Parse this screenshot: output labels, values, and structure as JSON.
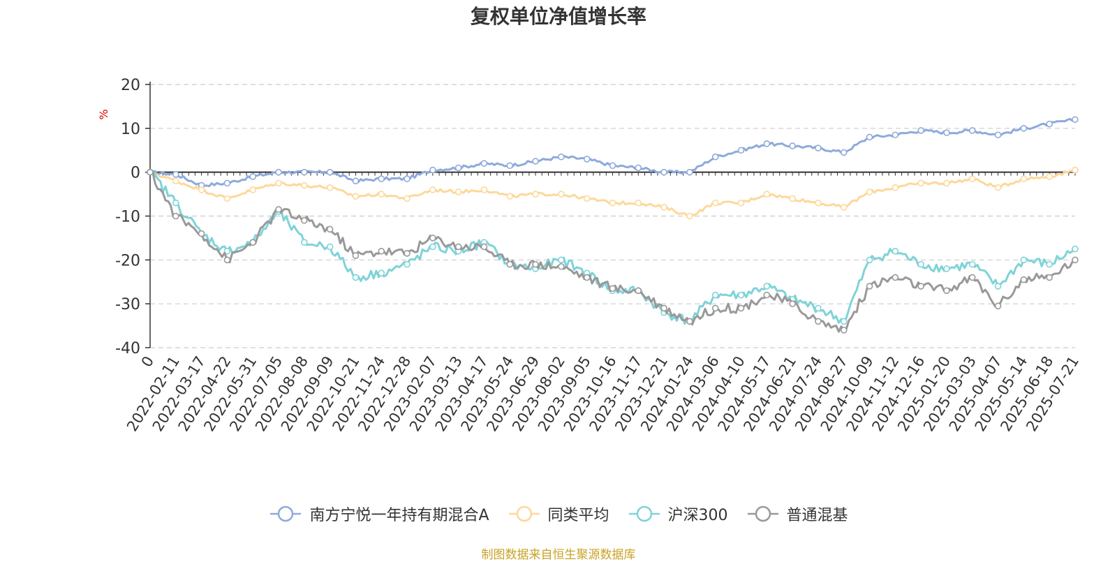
{
  "title": "复权单位净值增长率",
  "source_text": "制图数据来自恒生聚源数据库",
  "colors": {
    "fund": "#8eaadb",
    "peer": "#fdd89a",
    "index": "#7fd3d8",
    "mixed": "#999999",
    "unit": "#e00000"
  },
  "chart_data": {
    "type": "line",
    "title": "复权单位净值增长率",
    "ylabel": "%",
    "ylim": [
      -40,
      20
    ],
    "yticks": [
      20,
      10,
      0,
      -10,
      -20,
      -30,
      -40
    ],
    "grid": true,
    "legend_position": "bottom-center",
    "x_tick_labels": [
      "0",
      "2022-02-11",
      "2022-03-17",
      "2022-04-22",
      "2022-05-31",
      "2022-07-05",
      "2022-08-08",
      "2022-09-09",
      "2022-10-21",
      "2022-11-24",
      "2022-12-28",
      "2023-02-07",
      "2023-03-13",
      "2023-04-17",
      "2023-05-24",
      "2023-06-29",
      "2023-08-02",
      "2023-09-05",
      "2023-10-16",
      "2023-11-17",
      "2023-12-21",
      "2024-01-24",
      "2024-03-06",
      "2024-04-10",
      "2024-05-17",
      "2024-06-21",
      "2024-07-24",
      "2024-08-27",
      "2024-10-09",
      "2024-11-12",
      "2024-12-16",
      "2025-01-20",
      "2025-03-03",
      "2025-04-07",
      "2025-05-14",
      "2025-06-18",
      "2025-07-21"
    ],
    "series": [
      {
        "name": "南方宁悦一年持有期混合A",
        "color": "#8eaadb",
        "values": [
          0,
          -0.5,
          -3,
          -2.5,
          -1,
          0,
          0,
          0,
          -2,
          -1.5,
          -1.5,
          0.5,
          1,
          2,
          1.5,
          2.5,
          3.5,
          3,
          1.5,
          1,
          0,
          0,
          3.5,
          5,
          6.5,
          6,
          5.5,
          4.5,
          8,
          8.5,
          9.5,
          9,
          9.5,
          8.5,
          10,
          11,
          12
        ]
      },
      {
        "name": "同类平均",
        "color": "#fdd89a",
        "values": [
          0,
          -2,
          -4,
          -6,
          -4,
          -2.5,
          -3,
          -3.5,
          -5.5,
          -5,
          -6,
          -4,
          -4.5,
          -4,
          -5.5,
          -5,
          -5,
          -6,
          -7,
          -7,
          -8,
          -10,
          -7,
          -7,
          -5,
          -6,
          -7,
          -8,
          -4.5,
          -3.5,
          -2.5,
          -2.5,
          -1.5,
          -3.5,
          -1.5,
          -1,
          0.5
        ]
      },
      {
        "name": "沪深300",
        "color": "#7fd3d8",
        "values": [
          0,
          -7,
          -14,
          -18,
          -16,
          -9,
          -16,
          -17,
          -24,
          -23,
          -21,
          -17,
          -18,
          -16,
          -21,
          -22,
          -20,
          -23,
          -27,
          -27,
          -32,
          -34,
          -28,
          -28,
          -26,
          -29,
          -31,
          -34,
          -20,
          -18,
          -21,
          -22,
          -21,
          -26,
          -20,
          -21,
          -17.5
        ]
      },
      {
        "name": "普通混基",
        "color": "#999999",
        "values": [
          0,
          -10,
          -14,
          -20,
          -16,
          -8.5,
          -11,
          -13,
          -19,
          -18,
          -18.5,
          -15,
          -17,
          -17,
          -21,
          -21,
          -21.5,
          -24,
          -26.5,
          -27,
          -31,
          -34,
          -31,
          -31,
          -28,
          -30,
          -34,
          -36,
          -26,
          -24,
          -26,
          -27,
          -24,
          -30.5,
          -24.5,
          -24,
          -20
        ]
      }
    ]
  }
}
